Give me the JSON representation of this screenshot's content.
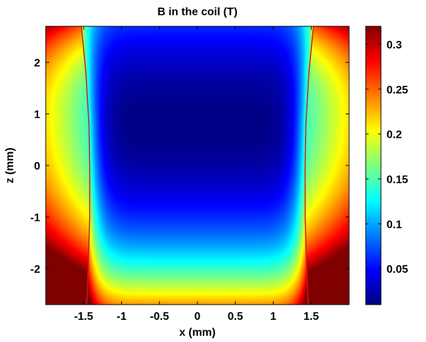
{
  "chart_data": {
    "type": "heatmap",
    "title": "B in the coil (T)",
    "xlabel": "x (mm)",
    "ylabel": "z (mm)",
    "xlim": [
      -2.0,
      2.0
    ],
    "ylim": [
      -2.7,
      2.7
    ],
    "x_ticks": [
      -1.5,
      -1,
      -0.5,
      0,
      0.5,
      1,
      1.5
    ],
    "x_tick_labels": [
      "-1.5",
      "-1",
      "-0.5",
      "0",
      "0.5",
      "1",
      "1.5"
    ],
    "y_ticks": [
      -2,
      -1,
      0,
      1,
      2
    ],
    "y_tick_labels": [
      "-2",
      "-1",
      "0",
      "1",
      "2"
    ],
    "colorbar": {
      "colormap": "jet",
      "clim": [
        0.01,
        0.32
      ],
      "ticks": [
        0.05,
        0.1,
        0.15,
        0.2,
        0.25,
        0.3
      ],
      "tick_labels": [
        "0.05",
        "0.1",
        "0.15",
        "0.2",
        "0.25",
        "0.3"
      ]
    },
    "field_minimum": {
      "x": 0.0,
      "z": 0.8,
      "value": 0.01
    },
    "coil_boundary_color": "#cc1a1a",
    "coil_boundaries": [
      {
        "name": "left",
        "points": [
          [
            -1.53,
            2.7
          ],
          [
            -1.47,
            1.8
          ],
          [
            -1.43,
            0.8
          ],
          [
            -1.42,
            0.0
          ],
          [
            -1.42,
            -1.0
          ],
          [
            -1.44,
            -2.0
          ],
          [
            -1.46,
            -2.7
          ]
        ]
      },
      {
        "name": "right",
        "points": [
          [
            1.53,
            2.7
          ],
          [
            1.47,
            1.8
          ],
          [
            1.43,
            0.8
          ],
          [
            1.42,
            0.0
          ],
          [
            1.42,
            -1.0
          ],
          [
            1.44,
            -2.0
          ],
          [
            1.46,
            -2.7
          ]
        ]
      }
    ]
  }
}
